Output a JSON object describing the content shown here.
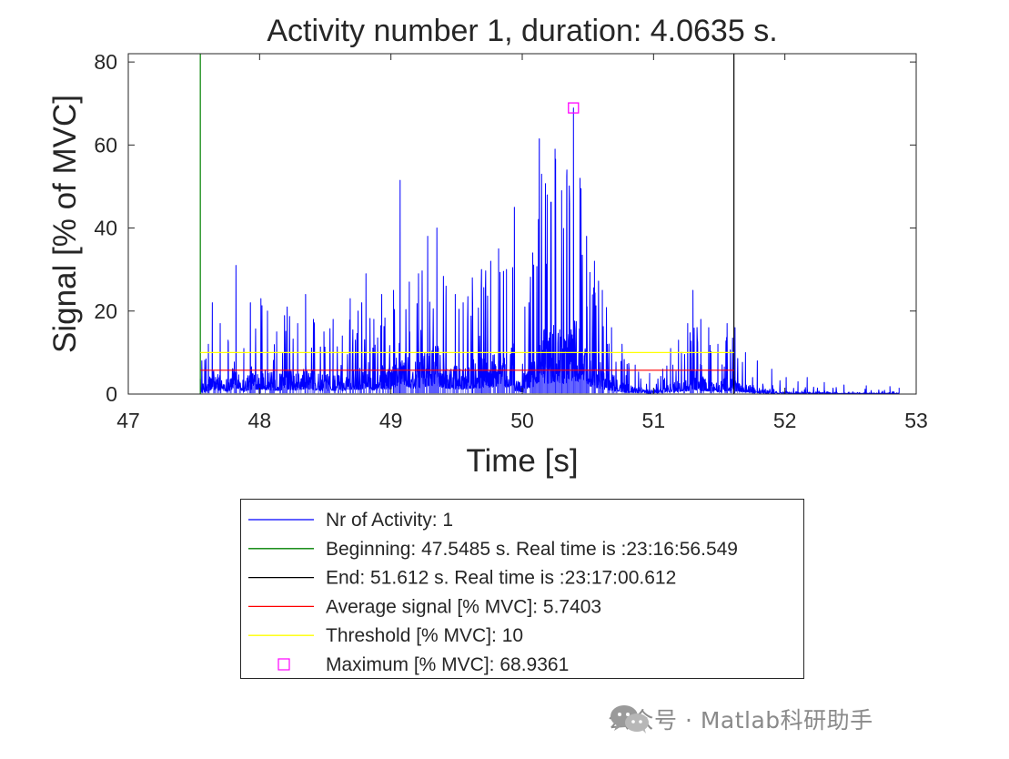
{
  "chart_data": {
    "type": "line",
    "title": "Activity number 1, duration: 4.0635 s.",
    "xlabel": "Time [s]",
    "ylabel": "Signal [% of MVC]",
    "xlim": [
      47,
      53
    ],
    "ylim": [
      0,
      82
    ],
    "xticks": [
      47,
      48,
      49,
      50,
      51,
      52,
      53
    ],
    "yticks": [
      0,
      20,
      40,
      60,
      80
    ],
    "grid": false,
    "series": [
      {
        "name": "Nr of Activity: 1",
        "color": "#0000ff",
        "style": "dense emg trace",
        "x_range": [
          47.5485,
          52.87
        ],
        "peaks": [
          [
            47.56,
            8
          ],
          [
            47.61,
            12
          ],
          [
            47.64,
            22
          ],
          [
            47.7,
            17
          ],
          [
            47.76,
            13
          ],
          [
            47.82,
            31
          ],
          [
            47.88,
            11
          ],
          [
            47.93,
            22
          ],
          [
            48.01,
            23
          ],
          [
            48.06,
            20
          ],
          [
            48.13,
            15
          ],
          [
            48.21,
            21
          ],
          [
            48.29,
            17
          ],
          [
            48.35,
            24
          ],
          [
            48.41,
            18
          ],
          [
            48.49,
            15
          ],
          [
            48.56,
            18
          ],
          [
            48.63,
            14
          ],
          [
            48.69,
            23
          ],
          [
            48.75,
            20
          ],
          [
            48.81,
            29
          ],
          [
            48.87,
            18
          ],
          [
            48.93,
            24
          ],
          [
            49.02,
            25
          ],
          [
            49.07,
            51.5
          ],
          [
            49.14,
            27
          ],
          [
            49.21,
            29
          ],
          [
            49.28,
            38
          ],
          [
            49.35,
            40
          ],
          [
            49.42,
            26
          ],
          [
            49.49,
            24
          ],
          [
            49.55,
            22
          ],
          [
            49.62,
            28
          ],
          [
            49.69,
            30
          ],
          [
            49.76,
            32
          ],
          [
            49.82,
            35
          ],
          [
            49.88,
            30
          ],
          [
            49.94,
            45
          ],
          [
            50.02,
            21
          ],
          [
            50.08,
            34
          ],
          [
            50.13,
            61.5
          ],
          [
            50.19,
            48
          ],
          [
            50.25,
            59
          ],
          [
            50.3,
            49
          ],
          [
            50.34,
            54
          ],
          [
            50.39,
            68.9361
          ],
          [
            50.44,
            52
          ],
          [
            50.49,
            38
          ],
          [
            50.55,
            32
          ],
          [
            50.61,
            25
          ],
          [
            50.68,
            16
          ],
          [
            50.76,
            12
          ],
          [
            50.86,
            7
          ],
          [
            50.97,
            5
          ],
          [
            51.07,
            6
          ],
          [
            51.13,
            11
          ],
          [
            51.19,
            13
          ],
          [
            51.26,
            17
          ],
          [
            51.3,
            25
          ],
          [
            51.36,
            18
          ],
          [
            51.42,
            16
          ],
          [
            51.49,
            12
          ],
          [
            51.56,
            17
          ],
          [
            51.62,
            16
          ],
          [
            51.7,
            10
          ],
          [
            51.79,
            8
          ],
          [
            51.9,
            6
          ],
          [
            52.01,
            4
          ],
          [
            52.1,
            3
          ],
          [
            52.17,
            4
          ],
          [
            52.3,
            2.8
          ],
          [
            52.45,
            2.2
          ],
          [
            52.62,
            2.0
          ],
          [
            52.8,
            1.8
          ],
          [
            52.87,
            1.5
          ]
        ]
      }
    ],
    "beginning": {
      "label": "Beginning: 47.5485 s. Real time is :23:16:56.549",
      "x": 47.5485,
      "color": "#008000"
    },
    "end": {
      "label": "End: 51.612 s. Real time is :23:17:00.612",
      "x": 51.612,
      "color": "#000000"
    },
    "average": {
      "label": "Average signal [% MVC]: 5.7403",
      "value": 5.7403,
      "color": "#ff0000"
    },
    "threshold": {
      "label": "Threshold [% MVC]: 10",
      "value": 10,
      "color": "#ffff00"
    },
    "maximum": {
      "label": "Maximum [% MVC]: 68.9361",
      "x": 50.39,
      "value": 68.9361,
      "color": "#ff00ff",
      "marker": "square"
    },
    "legend": {
      "location": "below plot",
      "entries": [
        "Nr of Activity: 1",
        "Beginning: 47.5485 s. Real time is :23:16:56.549",
        "End: 51.612 s. Real time is :23:17:00.612",
        "Average signal [% MVC]: 5.7403",
        "Threshold [% MVC]: 10",
        "Maximum [% MVC]: 68.9361"
      ]
    }
  },
  "watermark": {
    "text": "公众号 · Matlab科研助手",
    "icon": "wechat-icon"
  }
}
